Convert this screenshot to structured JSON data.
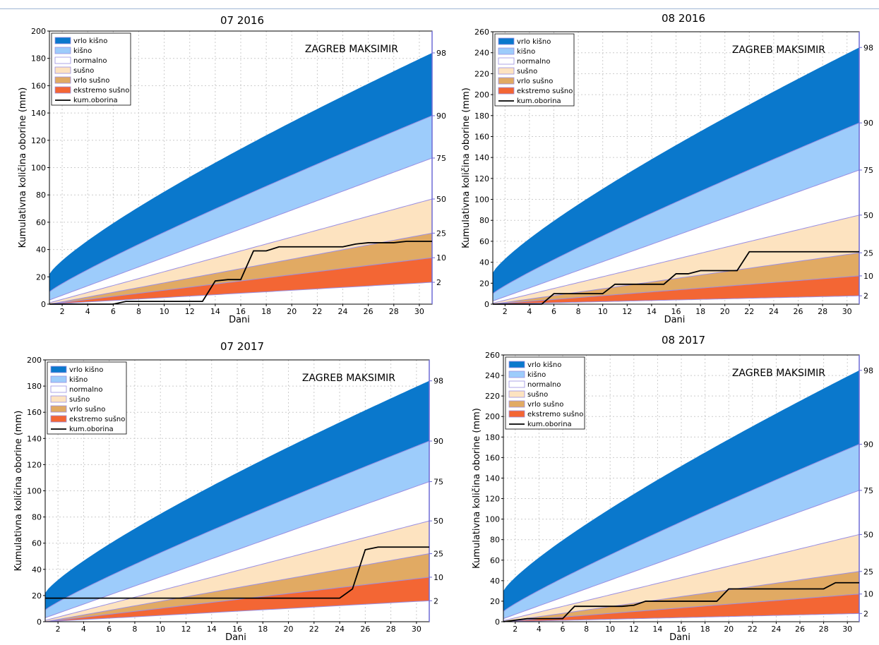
{
  "chart_data": [
    {
      "type": "area",
      "title": "07  2016",
      "station": "ZAGREB MAKSIMIR",
      "xlabel": "Dani",
      "ylabel": "Kumulativna količina oborine (mm)",
      "xlim": [
        1,
        31
      ],
      "ylim": [
        0,
        200
      ],
      "x_ticks": [
        2,
        4,
        6,
        8,
        10,
        12,
        14,
        16,
        18,
        20,
        22,
        24,
        26,
        28,
        30
      ],
      "y_ticks": [
        0,
        20,
        40,
        60,
        80,
        100,
        120,
        140,
        160,
        180,
        200
      ],
      "grid": true,
      "legend": "top-left",
      "legend_entries": [
        "vrlo kišno",
        "kišno",
        "normalno",
        "sušno",
        "vrlo sušno",
        "ekstremo sušno",
        "kum.oborina"
      ],
      "percentile_labels": [
        "98",
        "90",
        "75",
        "50",
        "25",
        "10",
        "2"
      ],
      "percentile_end_values": [
        184,
        138,
        107,
        77,
        52,
        34,
        16
      ],
      "percentile_start_values": [
        22,
        9,
        3,
        1,
        0,
        0,
        0
      ],
      "kum_oborina": {
        "x": [
          1,
          6,
          7,
          13,
          14,
          15,
          16,
          17,
          18,
          19,
          24,
          25,
          26,
          27,
          28,
          29,
          30,
          31
        ],
        "y": [
          0,
          0,
          2,
          2,
          17,
          18,
          18,
          39,
          39,
          42,
          42,
          44,
          45,
          45,
          45,
          46,
          46,
          46
        ]
      }
    },
    {
      "type": "area",
      "title": "08  2016",
      "station": "ZAGREB MAKSIMIR",
      "xlabel": "Dani",
      "ylabel": "Kumulativna količina oborine (mm)",
      "xlim": [
        1,
        31
      ],
      "ylim": [
        0,
        260
      ],
      "x_ticks": [
        2,
        4,
        6,
        8,
        10,
        12,
        14,
        16,
        18,
        20,
        22,
        24,
        26,
        28,
        30
      ],
      "y_ticks": [
        0,
        20,
        40,
        60,
        80,
        100,
        120,
        140,
        160,
        180,
        200,
        220,
        240,
        260
      ],
      "grid": true,
      "legend": "top-left",
      "legend_entries": [
        "vrlo kišno",
        "kišno",
        "normalno",
        "sušno",
        "vrlo sušno",
        "ekstremo sušno",
        "kum.oborina"
      ],
      "percentile_labels": [
        "98",
        "90",
        "75",
        "50",
        "25",
        "10",
        "2"
      ],
      "percentile_end_values": [
        245,
        173,
        128,
        85,
        49,
        27,
        8
      ],
      "percentile_start_values": [
        30,
        10,
        3,
        1,
        0,
        0,
        0
      ],
      "kum_oborina": {
        "x": [
          1,
          5,
          6,
          10,
          11,
          15,
          16,
          17,
          18,
          21,
          22,
          31
        ],
        "y": [
          0,
          0,
          10,
          10,
          19,
          19,
          29,
          29,
          32,
          32,
          50,
          50
        ]
      }
    },
    {
      "type": "area",
      "title": "07  2017",
      "station": "ZAGREB MAKSIMIR",
      "xlabel": "Dani",
      "ylabel": "Kumulativna količina oborine (mm)",
      "xlim": [
        1,
        31
      ],
      "ylim": [
        0,
        200
      ],
      "x_ticks": [
        2,
        4,
        6,
        8,
        10,
        12,
        14,
        16,
        18,
        20,
        22,
        24,
        26,
        28,
        30
      ],
      "y_ticks": [
        0,
        20,
        40,
        60,
        80,
        100,
        120,
        140,
        160,
        180,
        200
      ],
      "grid": true,
      "legend": "top-left",
      "legend_entries": [
        "vrlo kišno",
        "kišno",
        "normalno",
        "sušno",
        "vrlo sušno",
        "ekstremo sušno",
        "kum.oborina"
      ],
      "percentile_labels": [
        "98",
        "90",
        "75",
        "50",
        "25",
        "10",
        "2"
      ],
      "percentile_end_values": [
        184,
        138,
        107,
        77,
        52,
        34,
        16
      ],
      "percentile_start_values": [
        22,
        9,
        3,
        1,
        0,
        0,
        0
      ],
      "kum_oborina": {
        "x": [
          1,
          24,
          25,
          26,
          27,
          31
        ],
        "y": [
          18,
          18,
          25,
          55,
          57,
          57
        ]
      }
    },
    {
      "type": "area",
      "title": "08  2017",
      "station": "ZAGREB MAKSIMIR",
      "xlabel": "Dani",
      "ylabel": "Kumulativna količina oborine (mm)",
      "xlim": [
        1,
        31
      ],
      "ylim": [
        0,
        260
      ],
      "x_ticks": [
        2,
        4,
        6,
        8,
        10,
        12,
        14,
        16,
        18,
        20,
        22,
        24,
        26,
        28,
        30
      ],
      "y_ticks": [
        0,
        20,
        40,
        60,
        80,
        100,
        120,
        140,
        160,
        180,
        200,
        220,
        240,
        260
      ],
      "grid": true,
      "legend": "top-left",
      "legend_entries": [
        "vrlo kišno",
        "kišno",
        "normalno",
        "sušno",
        "vrlo sušno",
        "ekstremo sušno",
        "kum.oborina"
      ],
      "percentile_labels": [
        "98",
        "90",
        "75",
        "50",
        "25",
        "10",
        "2"
      ],
      "percentile_end_values": [
        245,
        173,
        128,
        85,
        49,
        27,
        8
      ],
      "percentile_start_values": [
        30,
        10,
        3,
        1,
        0,
        0,
        0
      ],
      "kum_oborina": {
        "x": [
          1,
          3,
          6,
          7,
          11,
          12,
          13,
          19,
          20,
          28,
          29,
          31
        ],
        "y": [
          0,
          3,
          3,
          15,
          15,
          16,
          20,
          20,
          32,
          32,
          38,
          38
        ]
      }
    }
  ],
  "colors": {
    "vrlo_kisno": "#0a78cc",
    "kisno": "#9dccfb",
    "normalno": "#ffffff",
    "susno": "#fde3c0",
    "vrlo_susno": "#e1aa63",
    "ekstremo_susno": "#f36634",
    "percentile_line": "#9a8fe2",
    "kum_oborina": "#000000",
    "grid": "#cccccc",
    "right_axis": "#6f6bd6"
  }
}
